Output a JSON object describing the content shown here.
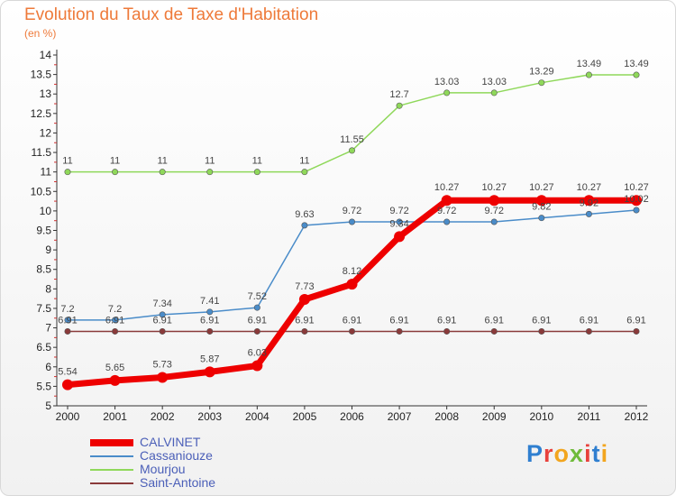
{
  "chart_data": {
    "type": "line",
    "title": "Evolution du Taux de Taxe d'Habitation",
    "subtitle": "(en %)",
    "x": [
      "2000",
      "2001",
      "2002",
      "2003",
      "2004",
      "2005",
      "2006",
      "2007",
      "2008",
      "2009",
      "2010",
      "2011",
      "2012"
    ],
    "ylim": [
      5,
      14
    ],
    "yticks": [
      "5",
      "5.5",
      "6",
      "6.5",
      "7",
      "7.5",
      "8",
      "8.5",
      "9",
      "9.5",
      "10",
      "10.5",
      "11",
      "11.5",
      "12",
      "12.5",
      "13",
      "13.5",
      "14"
    ],
    "grid": false,
    "legend_position": "bottom-left",
    "series": [
      {
        "name": "CALVINET",
        "color": "#ee0000",
        "values": [
          5.54,
          5.65,
          5.73,
          5.87,
          6.03,
          7.73,
          8.12,
          9.34,
          10.27,
          10.27,
          10.27,
          10.27,
          10.27
        ],
        "labels": [
          "5.54",
          "5.65",
          "5.73",
          "5.87",
          "6.03",
          "7.73",
          "8.12",
          "9.34",
          "10.27",
          "10.27",
          "10.27",
          "10.27",
          "10.27"
        ]
      },
      {
        "name": "Cassaniouze",
        "color": "#4a8cc9",
        "values": [
          7.2,
          7.2,
          7.34,
          7.41,
          7.52,
          9.63,
          9.72,
          9.72,
          9.72,
          9.72,
          9.82,
          9.92,
          10.02
        ],
        "labels": [
          "7.2",
          "7.2",
          "7.34",
          "7.41",
          "7.52",
          "9.63",
          "9.72",
          "9.72",
          "9.72",
          "9.72",
          "9.82",
          "9.92",
          "10.02"
        ]
      },
      {
        "name": "Mourjou",
        "color": "#8fd85a",
        "values": [
          11,
          11,
          11,
          11,
          11,
          11,
          11.55,
          12.7,
          13.03,
          13.03,
          13.29,
          13.49,
          13.49
        ],
        "labels": [
          "11",
          "11",
          "11",
          "11",
          "11",
          "11",
          "11.55",
          "12.7",
          "13.03",
          "13.03",
          "13.29",
          "13.49",
          "13.49"
        ]
      },
      {
        "name": "Saint-Antoine",
        "color": "#8a3a3a",
        "values": [
          6.91,
          6.91,
          6.91,
          6.91,
          6.91,
          6.91,
          6.91,
          6.91,
          6.91,
          6.91,
          6.91,
          6.91,
          6.91
        ],
        "labels": [
          "6.91",
          "6.91",
          "6.91",
          "6.91",
          "6.91",
          "6.91",
          "6.91",
          "6.91",
          "6.91",
          "6.91",
          "6.91",
          "6.91",
          "6.91"
        ]
      }
    ]
  },
  "logo": {
    "text": "Proxiti",
    "letter_colors": [
      "#2f7fd0",
      "#e8413c",
      "#f2a51e",
      "#6fbb3a",
      "#e8413c",
      "#2f7fd0",
      "#f2a51e"
    ]
  }
}
